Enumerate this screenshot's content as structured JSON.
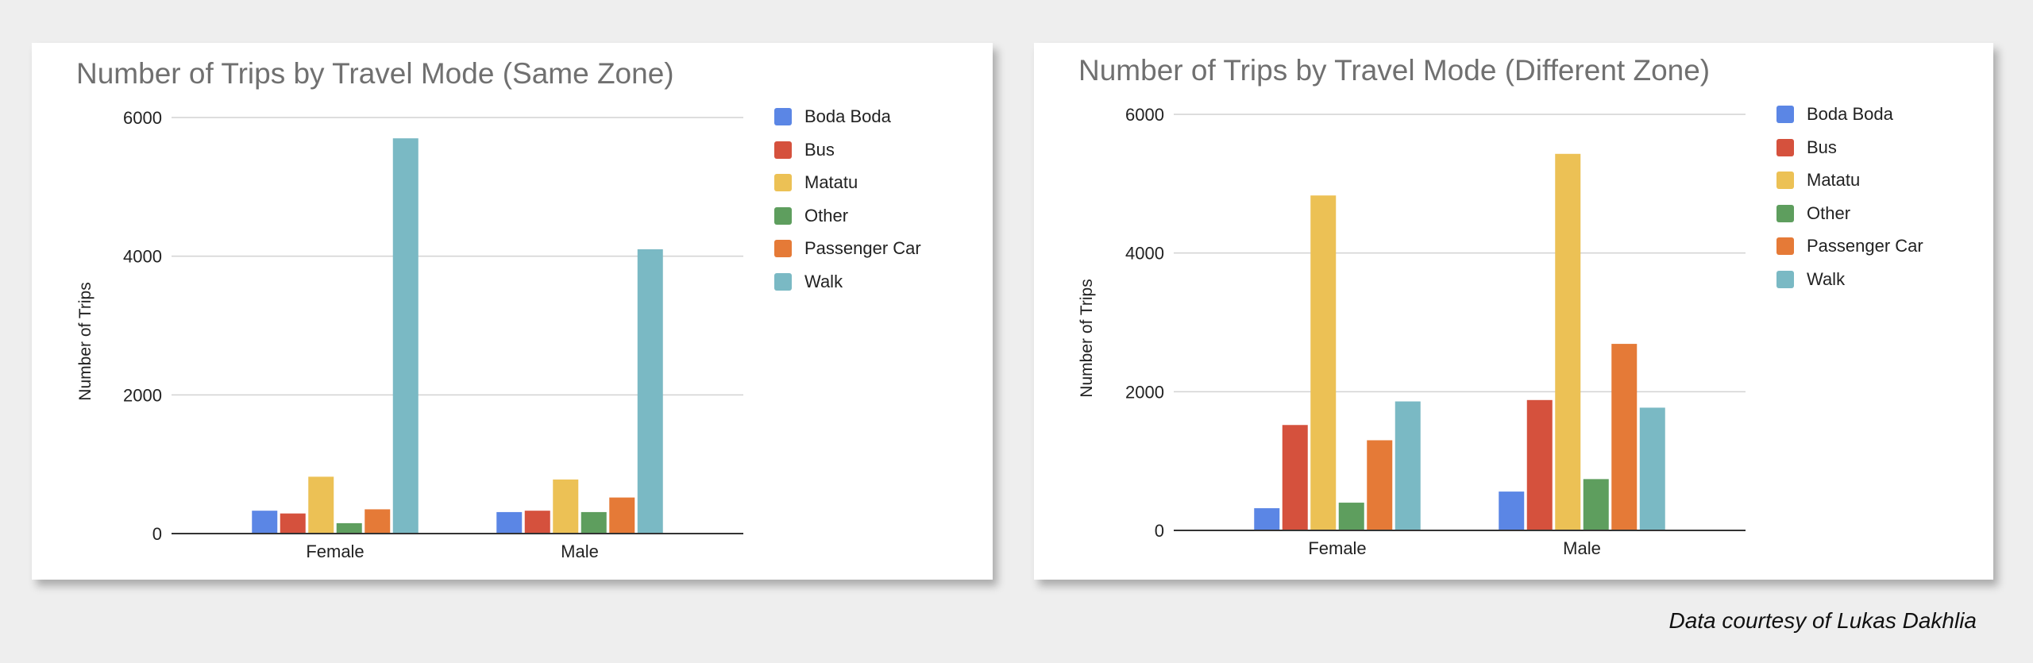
{
  "colors": {
    "Boda Boda": "#5B86E5",
    "Bus": "#D5513D",
    "Matatu": "#ECC155",
    "Other": "#5E9E5E",
    "Passenger Car": "#E57A37",
    "Walk": "#7AB9C4"
  },
  "chart_data": [
    {
      "type": "bar",
      "title": "Number of Trips by Travel Mode (Same Zone)",
      "ylabel": "Number of Trips",
      "xlabel": "",
      "categories": [
        "Female",
        "Male"
      ],
      "ylim": [
        0,
        6000
      ],
      "yticks": [
        "0",
        "2000",
        "4000",
        "6000"
      ],
      "ytick_values": [
        0,
        2000,
        4000,
        6000
      ],
      "grid": true,
      "legend_position": "right",
      "series": [
        {
          "name": "Boda Boda",
          "values": [
            330,
            310
          ]
        },
        {
          "name": "Bus",
          "values": [
            290,
            330
          ]
        },
        {
          "name": "Matatu",
          "values": [
            820,
            780
          ]
        },
        {
          "name": "Other",
          "values": [
            150,
            310
          ]
        },
        {
          "name": "Passenger Car",
          "values": [
            350,
            520
          ]
        },
        {
          "name": "Walk",
          "values": [
            5700,
            4100
          ]
        }
      ]
    },
    {
      "type": "bar",
      "title": "Number of Trips by Travel Mode (Different Zone)",
      "ylabel": "Number of Trips",
      "xlabel": "",
      "categories": [
        "Female",
        "Male"
      ],
      "ylim": [
        0,
        6000
      ],
      "yticks": [
        "0",
        "2000",
        "4000",
        "6000"
      ],
      "ytick_values": [
        0,
        2000,
        4000,
        6000
      ],
      "grid": true,
      "legend_position": "right",
      "series": [
        {
          "name": "Boda Boda",
          "values": [
            320,
            560
          ]
        },
        {
          "name": "Bus",
          "values": [
            1520,
            1880
          ]
        },
        {
          "name": "Matatu",
          "values": [
            4830,
            5430
          ]
        },
        {
          "name": "Other",
          "values": [
            400,
            740
          ]
        },
        {
          "name": "Passenger Car",
          "values": [
            1300,
            2690
          ]
        },
        {
          "name": "Walk",
          "values": [
            1860,
            1770
          ]
        }
      ]
    }
  ],
  "credit": "Data courtesy of Lukas Dakhlia"
}
